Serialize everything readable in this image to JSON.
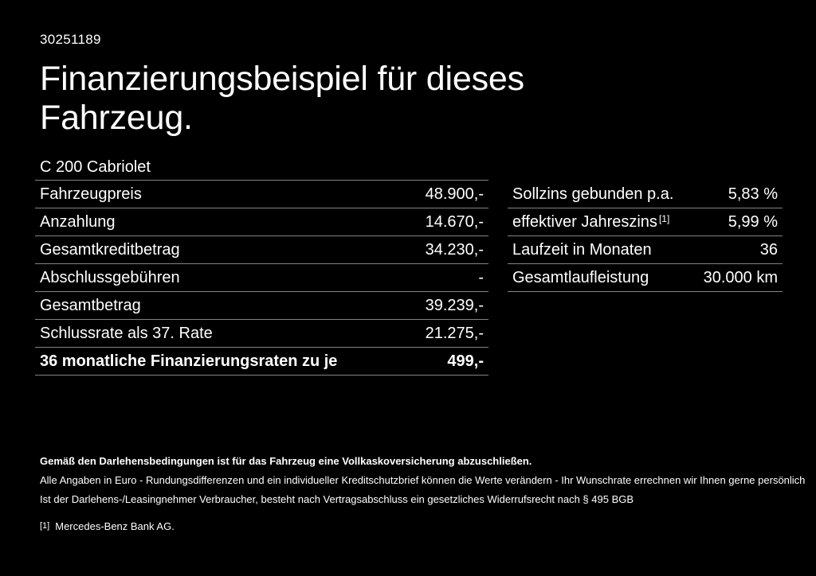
{
  "page": {
    "doc_id": "30251189",
    "title": "Finanzierungsbeispiel für dieses Fahrzeug.",
    "model": "C 200 Cabriolet"
  },
  "left_table": {
    "rows": [
      {
        "label": "Fahrzeugpreis",
        "value": "48.900,-"
      },
      {
        "label": "Anzahlung",
        "value": "14.670,-"
      },
      {
        "label": "Gesamtkreditbetrag",
        "value": "34.230,-"
      },
      {
        "label": "Abschlussgebühren",
        "value": "-"
      },
      {
        "label": "Gesamtbetrag",
        "value": "39.239,-"
      },
      {
        "label": "Schlussrate als 37. Rate",
        "value": "21.275,-"
      },
      {
        "label": "36 monatliche Finanzierungsraten zu je",
        "value": "499,-"
      }
    ]
  },
  "right_table": {
    "rows": [
      {
        "label": "Sollzins gebunden p.a.",
        "value": "5,83 %"
      },
      {
        "label": "effektiver Jahreszins",
        "sup": "[1]",
        "value": "5,99 %"
      },
      {
        "label": "Laufzeit in Monaten",
        "value": "36"
      },
      {
        "label": "Gesamtlaufleistung",
        "value": "30.000 km"
      }
    ]
  },
  "footer": {
    "bold_note": "Gemäß den Darlehensbedingungen ist für das Fahrzeug eine Vollkaskoversicherung abzuschließen.",
    "note1": "Alle Angaben in Euro - Rundungsdifferenzen und ein individueller Kreditschutzbrief können die Werte verändern - Ihr Wunschrate errechnen wir Ihnen gerne persönlich",
    "note2": "Ist der Darlehens-/Leasingnehmer Verbraucher, besteht nach Vertragsabschluss ein gesetzliches Widerrufsrecht nach § 495 BGB",
    "footnote_marker": "[1]",
    "footnote_text": "Mercedes-Benz Bank AG."
  },
  "theme": {
    "background": "#000000",
    "text": "#ffffff",
    "divider": "#848484"
  }
}
